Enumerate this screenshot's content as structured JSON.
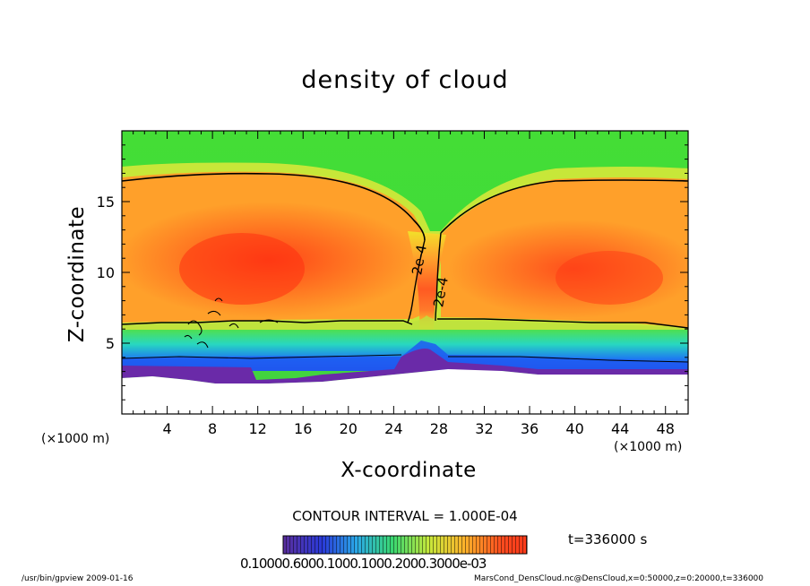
{
  "chart_data": {
    "type": "heatmap",
    "title": "density of cloud",
    "xlabel": "X-coordinate",
    "ylabel": "Z-coordinate",
    "x_unit_label": "(×1000 m)",
    "x_ticks": [
      4,
      8,
      12,
      16,
      20,
      24,
      28,
      32,
      36,
      40,
      44,
      48
    ],
    "y_ticks": [
      5,
      10,
      15
    ],
    "xlim": [
      0,
      50
    ],
    "ylim": [
      0,
      20
    ],
    "colormap": "rainbow (purple-blue-cyan-green-yellow-orange-red)",
    "contour_interval_text": "CONTOUR INTERVAL = 1.000E-04",
    "contour_labels": [
      "2e-4",
      "2e-4"
    ],
    "time_label": "t=336000 s",
    "colorbar_labels_text": "0.10000.6000.1000.1000.2000.3000e-03",
    "colors": {
      "max": "#ff3a14",
      "mid": "#58e035",
      "min": "#5a2e9c",
      "background": "#ffffff"
    }
  },
  "footer": {
    "left": "/usr/bin/gpview  2009-01-16",
    "right": "MarsCond_DensCloud.nc@DensCloud,x=0:50000,z=0:20000,t=336000"
  }
}
